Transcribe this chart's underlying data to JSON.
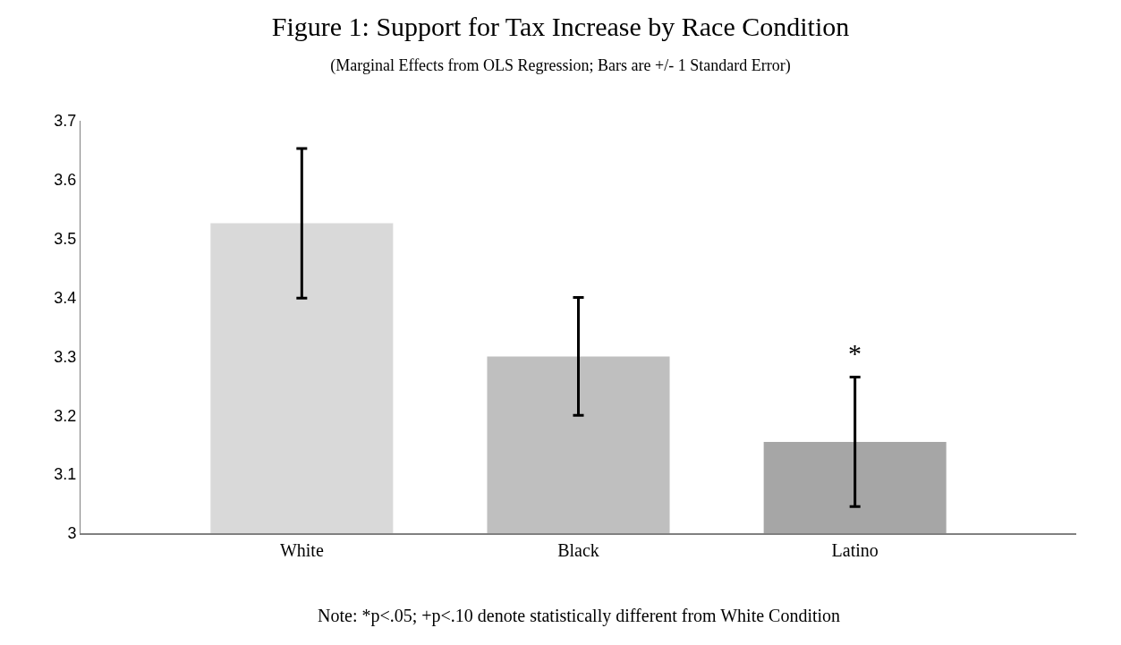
{
  "chart_data": {
    "type": "bar",
    "title": "Figure 1: Support for Tax Increase by Race Condition",
    "subtitle": "(Marginal Effects from OLS Regression; Bars are +/- 1 Standard Error)",
    "categories": [
      "White",
      "Black",
      "Latino"
    ],
    "values": [
      3.526,
      3.3,
      3.155
    ],
    "errors": [
      0.127,
      0.1,
      0.11
    ],
    "colors": [
      "#d9d9d9",
      "#bfbfbf",
      "#a6a6a6"
    ],
    "ylim": [
      3,
      3.7
    ],
    "yticks": [
      3,
      3.1,
      3.2,
      3.3,
      3.4,
      3.5,
      3.6,
      3.7
    ],
    "annotations": [
      "*",
      "Note: *p<.05; +p<.10 denote statistically different from White Condition"
    ]
  }
}
